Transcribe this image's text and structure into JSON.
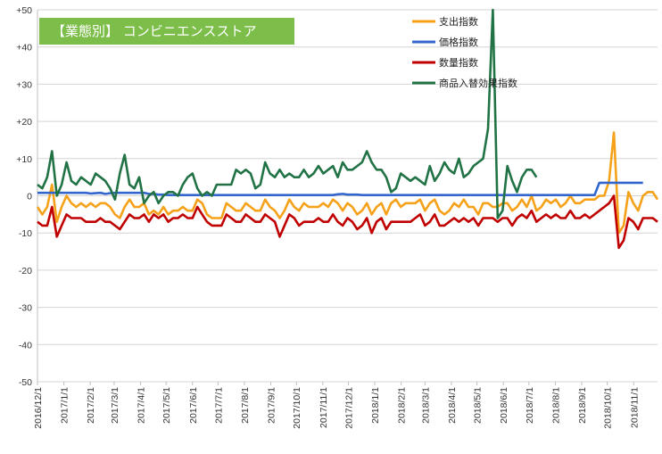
{
  "chart_data": {
    "type": "line",
    "title": "【業態別】 コンビニエンスストア",
    "title_box_color": "#7DBE4A",
    "ylim": [
      -50,
      50
    ],
    "y_ticks": [
      50,
      40,
      30,
      20,
      10,
      0,
      -10,
      -20,
      -30,
      -40,
      -50
    ],
    "y_tick_labels": [
      "+50",
      "+40",
      "+30",
      "+20",
      "+10",
      "0",
      "-10",
      "-20",
      "-30",
      "-40",
      "-50"
    ],
    "x_tick_labels": [
      "2016/12/1",
      "2017/1/1",
      "2017/2/1",
      "2017/3/1",
      "2017/4/1",
      "2017/5/1",
      "2017/6/1",
      "2017/7/1",
      "2017/8/1",
      "2017/9/1",
      "2017/10/1",
      "2017/11/1",
      "2017/12/1",
      "2018/1/1",
      "2018/2/1",
      "2018/3/1",
      "2018/4/1",
      "2018/5/1",
      "2018/6/1",
      "2018/7/1",
      "2018/8/1",
      "2018/9/1",
      "2018/10/1",
      "2018/11/1"
    ],
    "x_tick_weeks": [
      0,
      4.43,
      8.86,
      12.86,
      17.29,
      21.57,
      26,
      30.29,
      34.71,
      39.14,
      43.43,
      47.86,
      52.14,
      56.57,
      61,
      65,
      69.43,
      73.71,
      78.14,
      82.43,
      86.86,
      91.29,
      95.57,
      100
    ],
    "grid": true,
    "legend_position": "top-right",
    "series": [
      {
        "name": "支出指数",
        "color": "#F5A21A",
        "values": [
          -3,
          -5,
          -3,
          3,
          -7,
          -3,
          0,
          -2,
          -3,
          -2,
          -3,
          -2,
          -3,
          -2,
          -2,
          -3,
          -5,
          -6,
          -3,
          -1,
          -3,
          -3,
          -2,
          -5,
          -4,
          -5,
          -3,
          -5,
          -4,
          -4,
          -3,
          -4,
          -4,
          -1,
          -2,
          -5,
          -6,
          -6,
          -6,
          -2,
          -3,
          -4,
          -4,
          -2,
          -3,
          -4,
          -4,
          -1,
          -3,
          -4,
          -6,
          -4,
          -1,
          -3,
          -4,
          -2,
          -3,
          -3,
          -3,
          -2,
          -3,
          -1,
          -2,
          -4,
          -2,
          -3,
          -5,
          -4,
          -2,
          -5,
          -3,
          -2,
          -5,
          -2,
          -1,
          -3,
          -2,
          -2,
          -2,
          -1,
          -4,
          -2,
          -1,
          -4,
          -5,
          -4,
          -2,
          -3,
          -1,
          -3,
          -3,
          -5,
          -2,
          -2,
          -3,
          -3,
          -2,
          -2,
          -4,
          -3,
          -1,
          -3,
          0,
          -4,
          -3,
          -1,
          -2,
          -1,
          -3,
          -2,
          0,
          -2,
          -2,
          -1,
          -1,
          -1,
          0,
          0,
          4,
          17,
          -10,
          -8,
          1,
          -2,
          -4,
          0,
          1,
          1,
          -1
        ]
      },
      {
        "name": "価格指数",
        "color": "#3366CC",
        "values": [
          0.8,
          0.8,
          0.8,
          0.8,
          0.8,
          0.8,
          0.8,
          0.8,
          0.8,
          0.8,
          0.8,
          0.6,
          0.7,
          0.8,
          0.5,
          0.7,
          0.8,
          0.8,
          0.8,
          0.8,
          0.8,
          0.8,
          0.8,
          0.5,
          0.5,
          0.3,
          0.3,
          0.2,
          0.2,
          0.2,
          0.2,
          0.2,
          0.2,
          0.2,
          0.2,
          0.2,
          0.2,
          0.2,
          0.2,
          0.2,
          0.2,
          0.2,
          0.2,
          0.2,
          0.2,
          0.2,
          0.2,
          0.2,
          0.2,
          0.2,
          0.2,
          0.2,
          0.2,
          0.2,
          0.2,
          0.2,
          0.2,
          0.2,
          0.2,
          0.2,
          0.2,
          0.2,
          0.4,
          0.5,
          0.3,
          0.3,
          0.3,
          0.2,
          0.2,
          0.2,
          0.2,
          0.2,
          0.2,
          0.2,
          0.2,
          0.2,
          0.2,
          0.2,
          0.2,
          0.2,
          0.2,
          0.2,
          0.2,
          0.2,
          0.2,
          0.2,
          0.2,
          0.2,
          0.2,
          0.2,
          0.2,
          0.2,
          0.2,
          0.2,
          0.2,
          0.2,
          0.2,
          0.2,
          0.2,
          0.2,
          0.2,
          0.2,
          0.2,
          0.2,
          0.2,
          0.2,
          0.2,
          0.2,
          0.2,
          0.2,
          0.2,
          0.2,
          0.2,
          0.2,
          0.2,
          0.2,
          3.5,
          3.5,
          3.5,
          3.5,
          3.5,
          3.5,
          3.5,
          3.5,
          3.5,
          3.5
        ]
      },
      {
        "name": "数量指数",
        "color": "#C00000",
        "values": [
          -7,
          -8,
          -8,
          -3,
          -11,
          -8,
          -5,
          -6,
          -6,
          -6,
          -7,
          -7,
          -7,
          -6,
          -7,
          -7,
          -8,
          -9,
          -7,
          -5,
          -6,
          -6,
          -5,
          -7,
          -5,
          -6,
          -5,
          -7,
          -6,
          -6,
          -5,
          -6,
          -6,
          -3,
          -5,
          -7,
          -8,
          -8,
          -8,
          -5,
          -6,
          -7,
          -7,
          -5,
          -6,
          -7,
          -7,
          -5,
          -6,
          -7,
          -11,
          -8,
          -5,
          -6,
          -8,
          -7,
          -7,
          -7,
          -6,
          -7,
          -7,
          -5,
          -7,
          -8,
          -6,
          -7,
          -9,
          -8,
          -6,
          -10,
          -7,
          -6,
          -9,
          -7,
          -7,
          -7,
          -7,
          -7,
          -6,
          -5,
          -8,
          -7,
          -5,
          -8,
          -8,
          -7,
          -6,
          -7,
          -6,
          -7,
          -6,
          -8,
          -6,
          -6,
          -6,
          -7,
          -6,
          -6,
          -8,
          -6,
          -5,
          -6,
          -4,
          -7,
          -6,
          -5,
          -6,
          -5,
          -6,
          -6,
          -4,
          -6,
          -6,
          -5,
          -6,
          -5,
          -4,
          -3,
          -2,
          0,
          -14,
          -12,
          -6,
          -7,
          -9,
          -6,
          -6,
          -6,
          -7
        ]
      },
      {
        "name": "商品入替効果指数",
        "color": "#217346",
        "values": [
          3,
          2,
          5,
          12,
          0,
          3,
          9,
          4,
          3,
          5,
          4,
          3,
          6,
          5,
          4,
          2,
          -1,
          6,
          11,
          3,
          2,
          5,
          -2,
          0,
          1,
          -2,
          0,
          1,
          1,
          0,
          3,
          5,
          6,
          2,
          0,
          1,
          0,
          3,
          3,
          3,
          3,
          7,
          6,
          7,
          6,
          2,
          3,
          9,
          6,
          5,
          7,
          5,
          6,
          5,
          5,
          7,
          5,
          6,
          8,
          6,
          7,
          8,
          5,
          9,
          7,
          7,
          8,
          9,
          12,
          9,
          7,
          7,
          5,
          1,
          2,
          6,
          5,
          4,
          5,
          4,
          3,
          8,
          4,
          6,
          9,
          7,
          6,
          10,
          5,
          6,
          8,
          9,
          10,
          18,
          50,
          -6,
          -4,
          8,
          4,
          1,
          5,
          7,
          7,
          5
        ]
      }
    ]
  }
}
